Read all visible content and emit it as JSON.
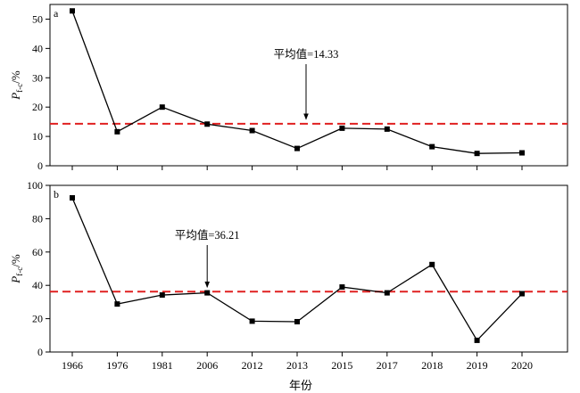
{
  "chart_data": {
    "type": "line",
    "categories": [
      "1966",
      "1976",
      "1981",
      "2006",
      "2012",
      "2013",
      "2015",
      "2017",
      "2018",
      "2019",
      "2020"
    ],
    "xlabel": "年份",
    "ylabel": {
      "main": "P",
      "sub": "f-c",
      "suffix": "/%"
    },
    "panels": [
      {
        "label": "a",
        "ylim": [
          0,
          55
        ],
        "yticks": [
          "0",
          "10",
          "20",
          "30",
          "40",
          "50"
        ],
        "series": [
          {
            "values": [
              52.8,
              11.6,
              20.0,
              14.2,
              12.0,
              5.9,
              12.8,
              12.5,
              6.5,
              4.2,
              4.4
            ]
          }
        ],
        "mean": {
          "value": 14.33,
          "label": "平均值=14.33",
          "arrow_category": "2013"
        }
      },
      {
        "label": "b",
        "ylim": [
          0,
          100
        ],
        "yticks": [
          "0",
          "20",
          "40",
          "60",
          "80",
          "100"
        ],
        "series": [
          {
            "values": [
              92.5,
              28.8,
              34.2,
              35.5,
              18.5,
              18.2,
              39.0,
              35.5,
              52.5,
              7.0,
              35.0
            ]
          }
        ],
        "mean": {
          "value": 36.21,
          "label": "平均值=36.21",
          "arrow_category": "2006"
        }
      }
    ]
  },
  "colors": {
    "mean_line": "#e02020",
    "series": "#000000"
  }
}
